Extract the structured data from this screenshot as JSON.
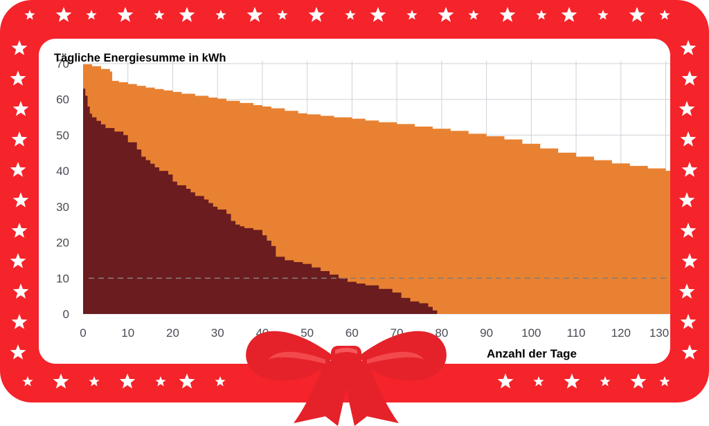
{
  "colors": {
    "frame": "#f5232a",
    "stars": "#ffffff",
    "area_total": "#e88232",
    "area_dark": "#6a1c1f",
    "grid": "#cfd0d8",
    "reference_line": "#8a7a72",
    "axis_text": "#4a4a55",
    "ribbon": "#e5222a"
  },
  "decor": {
    "frame": "red-frame-with-stars",
    "ribbon": "red-gift-bow-icon"
  },
  "chart_data": {
    "type": "area",
    "title": "",
    "ylabel": "Tägliche Energiesumme in kWh",
    "xlabel": "Anzahl der Tage",
    "xlim": [
      0,
      131
    ],
    "ylim": [
      0,
      70
    ],
    "x_ticks": [
      0,
      10,
      20,
      30,
      40,
      50,
      60,
      70,
      80,
      90,
      100,
      110,
      120,
      130
    ],
    "x_tick_labels": [
      "0",
      "10",
      "20",
      "30",
      "40",
      "50",
      "60",
      "70",
      "80",
      "90",
      "100",
      "110",
      "120",
      "130"
    ],
    "y_ticks": [
      0,
      10,
      20,
      30,
      40,
      50,
      60,
      70
    ],
    "y_tick_labels": [
      "0",
      "10",
      "20",
      "30",
      "40",
      "50",
      "60",
      "70"
    ],
    "grid": true,
    "reference_line": {
      "y": 10,
      "style": "dashed"
    },
    "series": [
      {
        "x": [
          0,
          2,
          4,
          6,
          6.5,
          8,
          10,
          12,
          14,
          16,
          18,
          20,
          22,
          25,
          28,
          30,
          32,
          35,
          38,
          40,
          42,
          45,
          48,
          50,
          53,
          56,
          60,
          63,
          66,
          70,
          74,
          78,
          82,
          86,
          90,
          94,
          98,
          102,
          106,
          110,
          114,
          118,
          122,
          126,
          130,
          131
        ],
        "values": [
          69.8,
          69.3,
          68.5,
          67.8,
          65.2,
          64.8,
          64.3,
          63.8,
          63.3,
          62.9,
          62.5,
          62.1,
          61.6,
          61,
          60.5,
          60.2,
          59.6,
          59,
          58.4,
          58,
          57.5,
          56.8,
          56.1,
          55.8,
          55.4,
          55,
          54.6,
          54.1,
          53.6,
          53.1,
          52.4,
          51.8,
          51.2,
          50.4,
          49.7,
          48.8,
          47.6,
          46.3,
          45.1,
          44,
          43,
          42.1,
          41.4,
          40.7,
          40,
          39.7
        ]
      },
      {
        "x": [
          0,
          0.5,
          1,
          1.5,
          2,
          3,
          4,
          5,
          7,
          9,
          10,
          12,
          13,
          14,
          15,
          16,
          17,
          19,
          20,
          21,
          23,
          24,
          25,
          27,
          28,
          29,
          30,
          32,
          33,
          34,
          35,
          36,
          38,
          40,
          41,
          42,
          43,
          45,
          47,
          49,
          51,
          53,
          55,
          57,
          59,
          61,
          63,
          66,
          69,
          71,
          73,
          75,
          77,
          78,
          79
        ],
        "values": [
          63,
          61,
          58,
          56,
          55,
          54,
          53,
          52,
          51,
          50,
          48,
          46,
          44,
          43,
          42,
          41,
          40,
          39,
          37,
          36,
          35,
          34,
          33,
          32,
          31,
          30,
          29.2,
          28,
          26,
          25,
          24.5,
          24,
          23.5,
          22,
          20.5,
          19,
          16,
          15,
          14.5,
          14,
          13,
          12,
          11,
          10,
          9,
          8.5,
          8,
          7,
          6,
          4.5,
          3.5,
          3,
          2,
          1,
          0
        ]
      }
    ]
  }
}
